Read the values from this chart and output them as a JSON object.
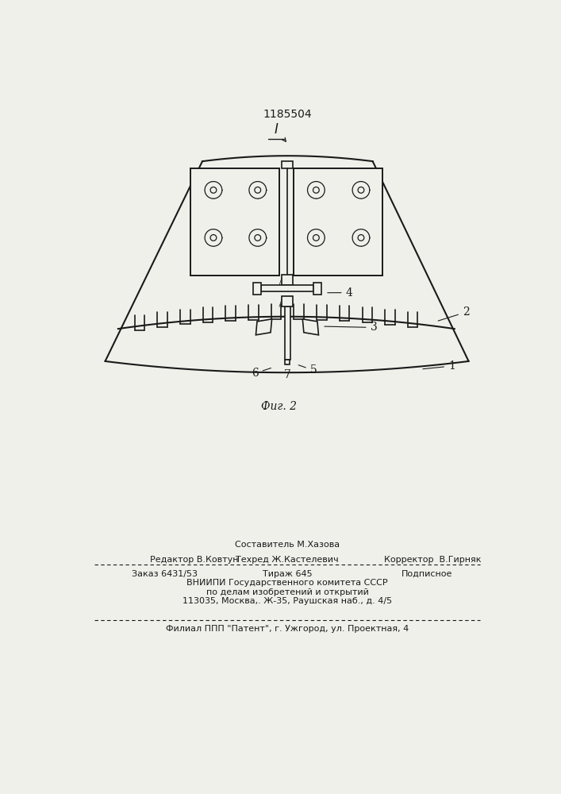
{
  "patent_number": "1185504",
  "fig_label": "Фиг. 2",
  "bg_color": "#f0f0eb",
  "line_color": "#1a1a1a",
  "footer_editor": "Редактор В.Ковтун",
  "footer_compiler_top": "Составитель М.Хазова",
  "footer_techred": "Техред Ж.Кастелевич",
  "footer_corrector": "Корректор  В.Гирняк",
  "footer_order": "Заказ 6431/53",
  "footer_tirazh": "Тираж 645",
  "footer_podpisnoe": "Подписное",
  "footer_vniip1": "ВНИИПИ Государственного комитета СССР",
  "footer_vniip2": "по делам изобретений и открытий",
  "footer_vniip3": "113035, Москва,. Ж-35, Раушская наб., д. 4/5",
  "footer_filial": "Филиал ППП \"Патент\", г. Ужгород, ул. Проектная, 4"
}
